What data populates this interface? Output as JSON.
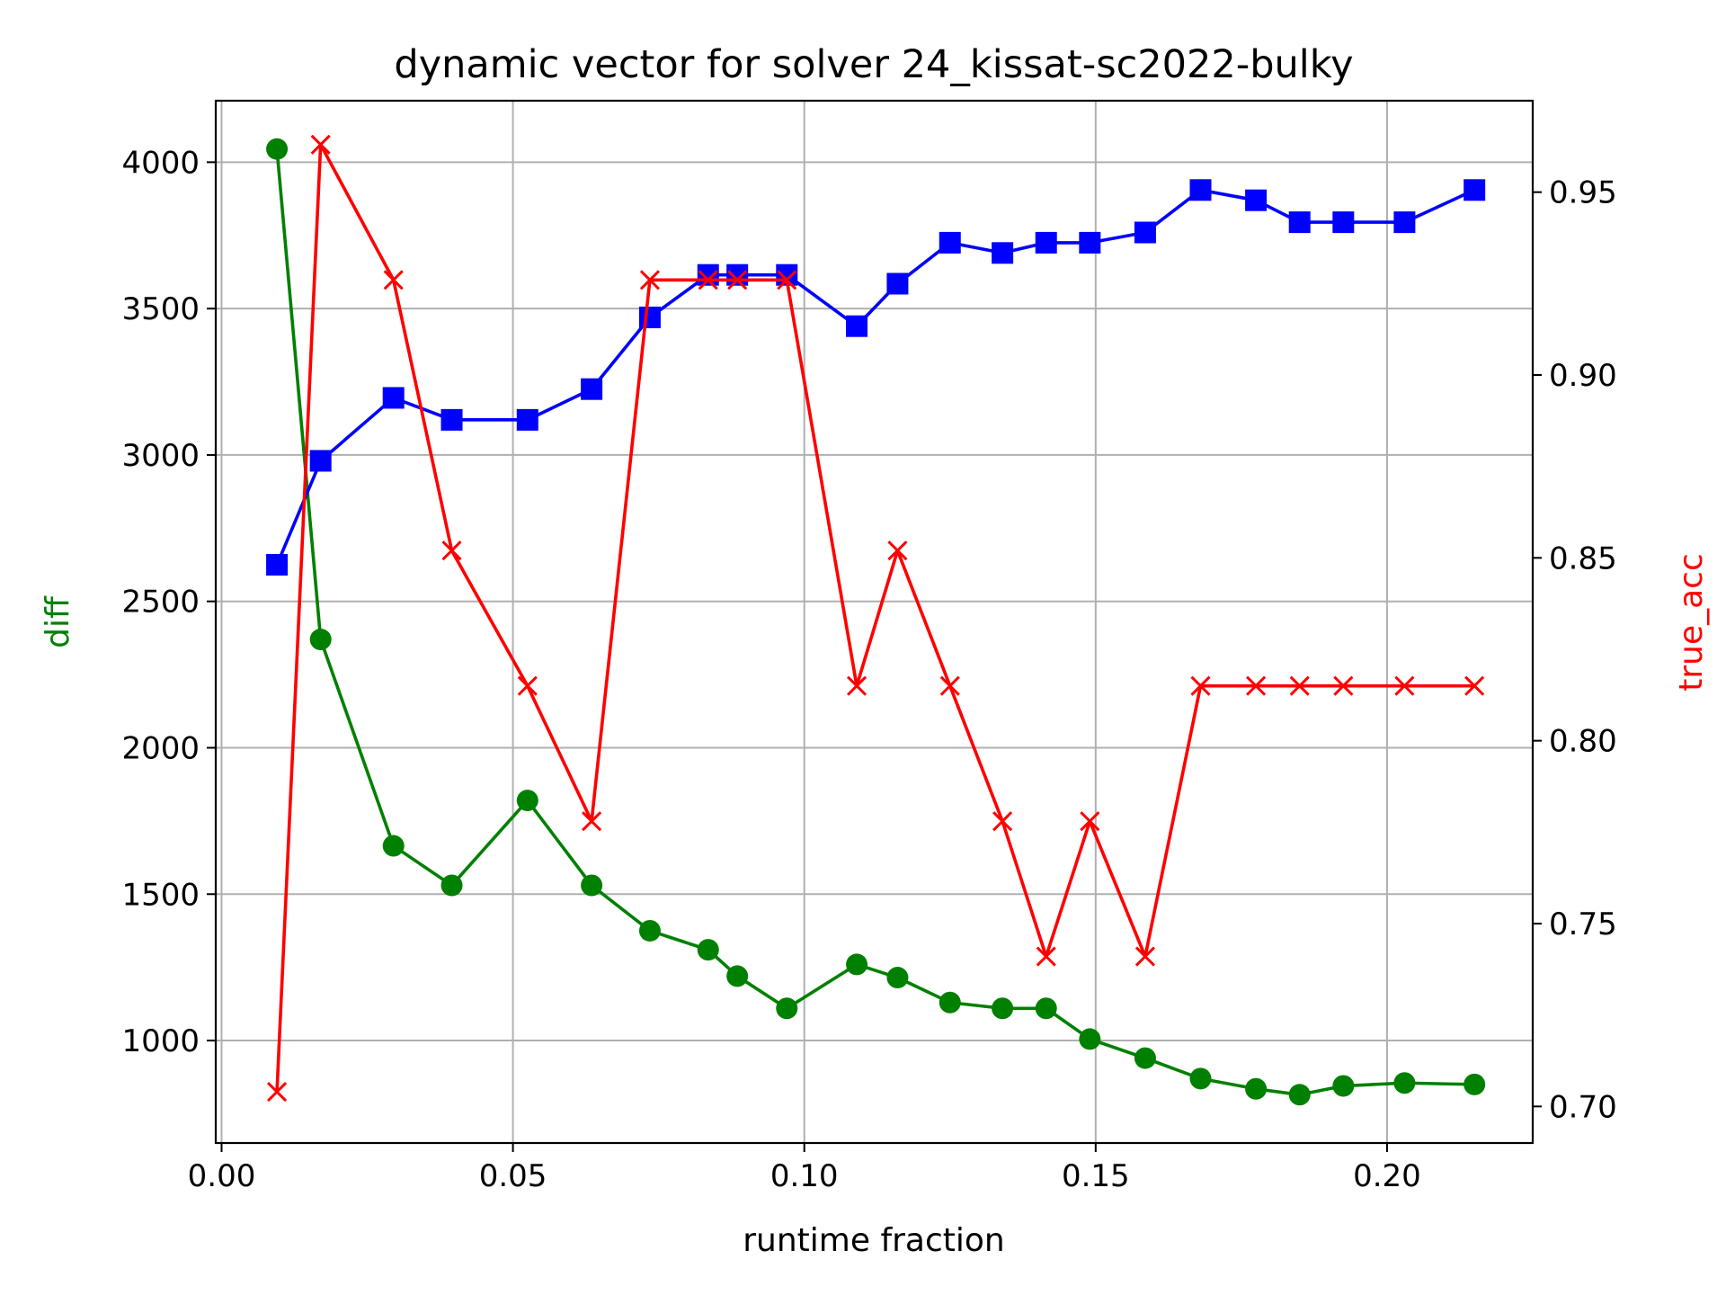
{
  "chart_data": {
    "type": "line",
    "title": "dynamic vector for solver 24_kissat-sc2022-bulky",
    "xlabel": "runtime fraction",
    "ylabel_left": "diff",
    "ylabel_right": "true_acc",
    "xlim": [
      -0.001,
      0.225
    ],
    "ylim_left": [
      650,
      4210
    ],
    "ylim_right": [
      0.69,
      0.975
    ],
    "x_ticks": [
      0.0,
      0.05,
      0.1,
      0.15,
      0.2
    ],
    "x_tick_labels": [
      "0.00",
      "0.05",
      "0.10",
      "0.15",
      "0.20"
    ],
    "y_left_ticks": [
      1000,
      1500,
      2000,
      2500,
      3000,
      3500,
      4000
    ],
    "y_left_tick_labels": [
      "1000",
      "1500",
      "2000",
      "2500",
      "3000",
      "3500",
      "4000"
    ],
    "y_right_ticks": [
      0.7,
      0.75,
      0.8,
      0.85,
      0.9,
      0.95
    ],
    "y_right_tick_labels": [
      "0.70",
      "0.75",
      "0.80",
      "0.85",
      "0.90",
      "0.95"
    ],
    "grid": true,
    "x": [
      0.0095,
      0.017,
      0.0295,
      0.0395,
      0.0525,
      0.0635,
      0.0735,
      0.0835,
      0.0885,
      0.097,
      0.109,
      0.116,
      0.125,
      0.134,
      0.1415,
      0.149,
      0.1585,
      0.168,
      0.1775,
      0.185,
      0.1925,
      0.203,
      0.215
    ],
    "series": [
      {
        "axis": "left",
        "color": "#008000",
        "marker": "circle",
        "values": [
          4045,
          2370,
          1665,
          1530,
          1820,
          1530,
          1375,
          1310,
          1220,
          1110,
          1260,
          1215,
          1130,
          1110,
          1110,
          1005,
          940,
          870,
          835,
          815,
          845,
          855,
          850
        ]
      },
      {
        "axis": "left",
        "color": "#0000ff",
        "marker": "square",
        "values": [
          2625,
          2980,
          3195,
          3120,
          3120,
          3225,
          3470,
          3615,
          3615,
          3615,
          3440,
          3585,
          3725,
          3690,
          3725,
          3725,
          3760,
          3905,
          3870,
          3795,
          3795,
          3795,
          3905
        ]
      },
      {
        "axis": "right",
        "color": "#ff0000",
        "marker": "x",
        "values": [
          0.704,
          0.963,
          0.926,
          0.852,
          0.815,
          0.778,
          0.926,
          0.926,
          0.926,
          0.926,
          0.815,
          0.852,
          0.815,
          0.778,
          0.741,
          0.778,
          0.741,
          0.815,
          0.815,
          0.815,
          0.815,
          0.815,
          0.815
        ]
      }
    ]
  }
}
